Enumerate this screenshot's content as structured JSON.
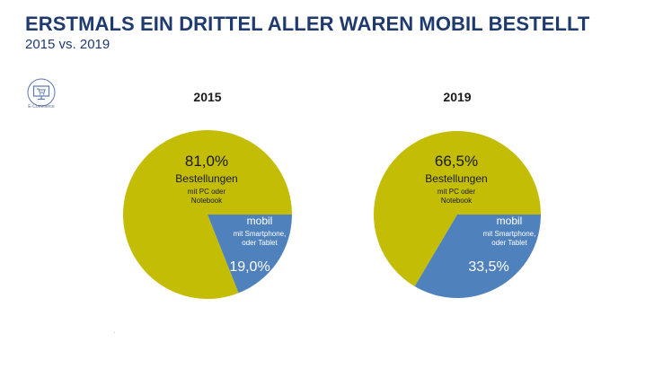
{
  "header": {
    "title": "ERSTMALS EIN DRITTEL ALLER WAREN MOBIL BESTELLT",
    "subtitle": "2015 vs. 2019",
    "badge_label": "E-Commerce"
  },
  "colors": {
    "title": "#1f3a6e",
    "pc_slice": "#c3bd05",
    "mobile_slice": "#4f81bd",
    "label_dark": "#1a1a1a",
    "label_light": "#ffffff",
    "badge": "#5b78b0"
  },
  "icons": {
    "badge": "monitor-cart-icon"
  },
  "chart_data": [
    {
      "type": "pie",
      "title": "2015",
      "slices": [
        {
          "name": "Bestellungen",
          "sub": "mit PC oder Notebook",
          "value": 81.0,
          "label": "81,0%",
          "color": "#c3bd05"
        },
        {
          "name": "mobil",
          "sub": "mit Smartphone, oder Tablet",
          "value": 19.0,
          "label": "19,0%",
          "color": "#4f81bd"
        }
      ]
    },
    {
      "type": "pie",
      "title": "2019",
      "slices": [
        {
          "name": "Bestellungen",
          "sub": "mit PC oder Notebook",
          "value": 66.5,
          "label": "66,5%",
          "color": "#c3bd05"
        },
        {
          "name": "mobil",
          "sub": "mit Smartphone, oder Tablet",
          "value": 33.5,
          "label": "33,5%",
          "color": "#4f81bd"
        }
      ]
    }
  ]
}
